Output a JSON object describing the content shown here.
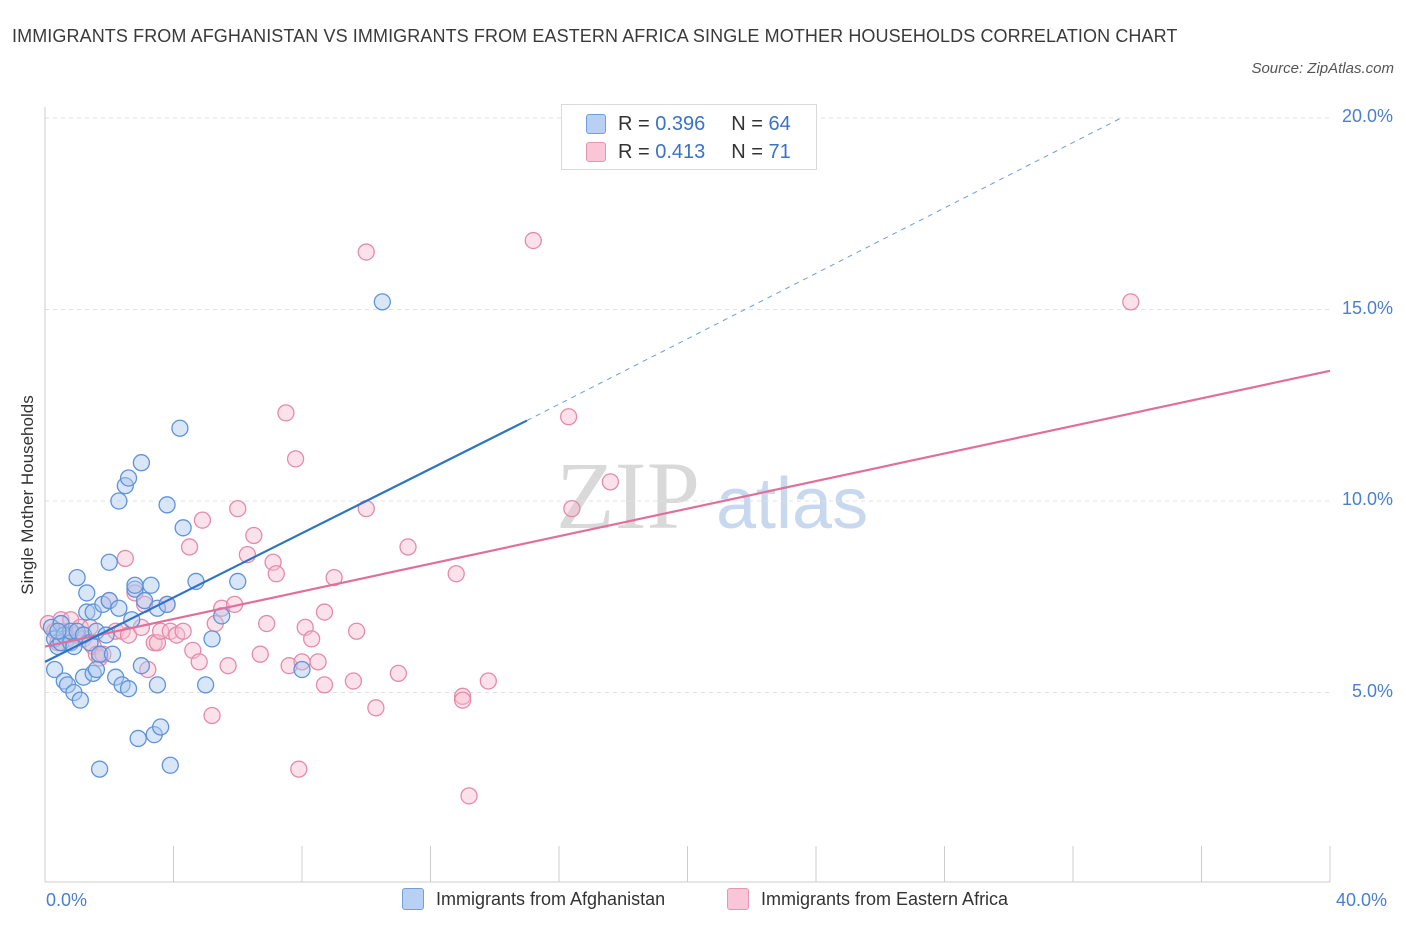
{
  "chart_data": {
    "type": "scatter",
    "title": "IMMIGRANTS FROM AFGHANISTAN VS IMMIGRANTS FROM EASTERN AFRICA SINGLE MOTHER HOUSEHOLDS CORRELATION CHART",
    "source": "Source: ZipAtlas.com",
    "ylabel": "Single Mother Households",
    "xlim": [
      0,
      40
    ],
    "ylim": [
      0,
      20
    ],
    "x_tick_labels": {
      "left": "0.0%",
      "right": "40.0%"
    },
    "y_ticks": [
      {
        "value": 5,
        "label": "5.0%"
      },
      {
        "value": 10,
        "label": "10.0%"
      },
      {
        "value": 15,
        "label": "15.0%"
      },
      {
        "value": 20,
        "label": "20.0%"
      }
    ],
    "colors": {
      "blue_fill": "#aac8f0",
      "blue_stroke": "#5f93d8",
      "blue_line": "#2f72c9",
      "pink_fill": "#f6bfd1",
      "pink_stroke": "#e58aab",
      "pink_line": "#e0709a",
      "grid": "#e0e0e0",
      "watermark": "#d9d9d9"
    },
    "watermark": {
      "zip": "ZIP",
      "atlas": "atlas"
    },
    "legend": {
      "r_label": "R =",
      "n_label": "N =",
      "series": [
        {
          "r": "0.396",
          "n": "64"
        },
        {
          "r": "0.413",
          "n": "71"
        }
      ]
    },
    "series": [
      {
        "name": "Immigrants from Afghanistan",
        "trend": {
          "x0": 0,
          "y0": 5.8,
          "x1": 15,
          "y1": 12.1,
          "dash_to_x": 33.5,
          "dash_to_y": 20.0
        },
        "points": [
          [
            0.2,
            6.7
          ],
          [
            0.3,
            6.4
          ],
          [
            0.3,
            5.6
          ],
          [
            0.4,
            6.2
          ],
          [
            0.5,
            6.8
          ],
          [
            0.5,
            6.3
          ],
          [
            0.6,
            5.3
          ],
          [
            0.6,
            6.5
          ],
          [
            0.7,
            5.2
          ],
          [
            0.8,
            6.3
          ],
          [
            0.8,
            6.6
          ],
          [
            0.9,
            6.2
          ],
          [
            0.9,
            5.0
          ],
          [
            1.0,
            8.0
          ],
          [
            1.0,
            6.6
          ],
          [
            1.1,
            4.8
          ],
          [
            1.2,
            6.5
          ],
          [
            1.2,
            5.4
          ],
          [
            1.3,
            7.6
          ],
          [
            1.3,
            7.1
          ],
          [
            1.4,
            6.3
          ],
          [
            1.5,
            5.5
          ],
          [
            1.5,
            7.1
          ],
          [
            1.6,
            5.6
          ],
          [
            1.6,
            6.6
          ],
          [
            1.7,
            6.0
          ],
          [
            1.7,
            3.0
          ],
          [
            1.8,
            7.3
          ],
          [
            1.9,
            6.5
          ],
          [
            2.0,
            7.4
          ],
          [
            2.0,
            8.4
          ],
          [
            2.1,
            6.0
          ],
          [
            2.2,
            5.4
          ],
          [
            2.3,
            7.2
          ],
          [
            2.3,
            10.0
          ],
          [
            2.4,
            5.2
          ],
          [
            2.5,
            10.4
          ],
          [
            2.6,
            10.6
          ],
          [
            2.6,
            5.1
          ],
          [
            2.7,
            6.9
          ],
          [
            2.8,
            7.7
          ],
          [
            2.8,
            7.8
          ],
          [
            2.9,
            3.8
          ],
          [
            3.0,
            11.0
          ],
          [
            3.0,
            5.7
          ],
          [
            3.1,
            7.4
          ],
          [
            3.3,
            7.8
          ],
          [
            3.4,
            3.9
          ],
          [
            3.5,
            5.2
          ],
          [
            3.5,
            7.2
          ],
          [
            3.6,
            4.1
          ],
          [
            3.8,
            9.9
          ],
          [
            3.8,
            7.3
          ],
          [
            3.9,
            3.1
          ],
          [
            4.2,
            11.9
          ],
          [
            4.3,
            9.3
          ],
          [
            4.7,
            7.9
          ],
          [
            5.0,
            5.2
          ],
          [
            5.2,
            6.4
          ],
          [
            5.5,
            7.0
          ],
          [
            6.0,
            7.9
          ],
          [
            8.0,
            5.6
          ],
          [
            10.5,
            15.2
          ],
          [
            0.4,
            6.6
          ]
        ]
      },
      {
        "name": "Immigrants from Eastern Africa",
        "trend": {
          "x0": 0,
          "y0": 6.2,
          "x1": 40,
          "y1": 13.4
        },
        "points": [
          [
            0.1,
            6.8
          ],
          [
            0.3,
            6.6
          ],
          [
            0.4,
            6.3
          ],
          [
            0.5,
            6.9
          ],
          [
            0.6,
            6.6
          ],
          [
            0.7,
            6.4
          ],
          [
            0.8,
            6.9
          ],
          [
            0.9,
            6.5
          ],
          [
            1.0,
            6.5
          ],
          [
            1.1,
            6.7
          ],
          [
            1.2,
            6.4
          ],
          [
            1.4,
            6.7
          ],
          [
            1.5,
            6.2
          ],
          [
            1.6,
            6.0
          ],
          [
            1.7,
            5.9
          ],
          [
            1.8,
            6.0
          ],
          [
            2.0,
            7.4
          ],
          [
            2.2,
            6.6
          ],
          [
            2.4,
            6.6
          ],
          [
            2.5,
            8.5
          ],
          [
            2.6,
            6.5
          ],
          [
            2.8,
            7.6
          ],
          [
            3.0,
            6.7
          ],
          [
            3.1,
            7.3
          ],
          [
            3.2,
            5.6
          ],
          [
            3.4,
            6.3
          ],
          [
            3.5,
            6.3
          ],
          [
            3.6,
            6.6
          ],
          [
            3.8,
            7.3
          ],
          [
            3.9,
            6.6
          ],
          [
            4.1,
            6.5
          ],
          [
            4.3,
            6.6
          ],
          [
            4.5,
            8.8
          ],
          [
            4.6,
            6.1
          ],
          [
            4.8,
            5.8
          ],
          [
            4.9,
            9.5
          ],
          [
            5.2,
            4.4
          ],
          [
            5.3,
            6.8
          ],
          [
            5.5,
            7.2
          ],
          [
            5.7,
            5.7
          ],
          [
            5.9,
            7.3
          ],
          [
            6.0,
            9.8
          ],
          [
            6.3,
            8.6
          ],
          [
            6.5,
            9.1
          ],
          [
            6.7,
            6.0
          ],
          [
            6.9,
            6.8
          ],
          [
            7.1,
            8.4
          ],
          [
            7.2,
            8.1
          ],
          [
            7.5,
            12.3
          ],
          [
            7.6,
            5.7
          ],
          [
            7.8,
            11.1
          ],
          [
            7.9,
            3.0
          ],
          [
            8.0,
            5.8
          ],
          [
            8.1,
            6.7
          ],
          [
            8.3,
            6.4
          ],
          [
            8.5,
            5.8
          ],
          [
            8.7,
            7.1
          ],
          [
            8.7,
            5.2
          ],
          [
            9.0,
            8.0
          ],
          [
            9.6,
            5.3
          ],
          [
            9.7,
            6.6
          ],
          [
            10.0,
            9.8
          ],
          [
            10.0,
            16.5
          ],
          [
            10.3,
            4.6
          ],
          [
            11.0,
            5.5
          ],
          [
            11.3,
            8.8
          ],
          [
            12.8,
            8.1
          ],
          [
            13.0,
            4.9
          ],
          [
            15.2,
            16.8
          ],
          [
            16.4,
            9.8
          ],
          [
            17.6,
            10.5
          ]
        ],
        "outliers": [
          [
            16.3,
            12.2
          ],
          [
            33.8,
            15.2
          ],
          [
            13.8,
            5.3
          ],
          [
            13.0,
            4.8
          ],
          [
            13.2,
            2.3
          ]
        ]
      }
    ],
    "bottom_legend": [
      "Immigrants from Afghanistan",
      "Immigrants from Eastern Africa"
    ]
  }
}
